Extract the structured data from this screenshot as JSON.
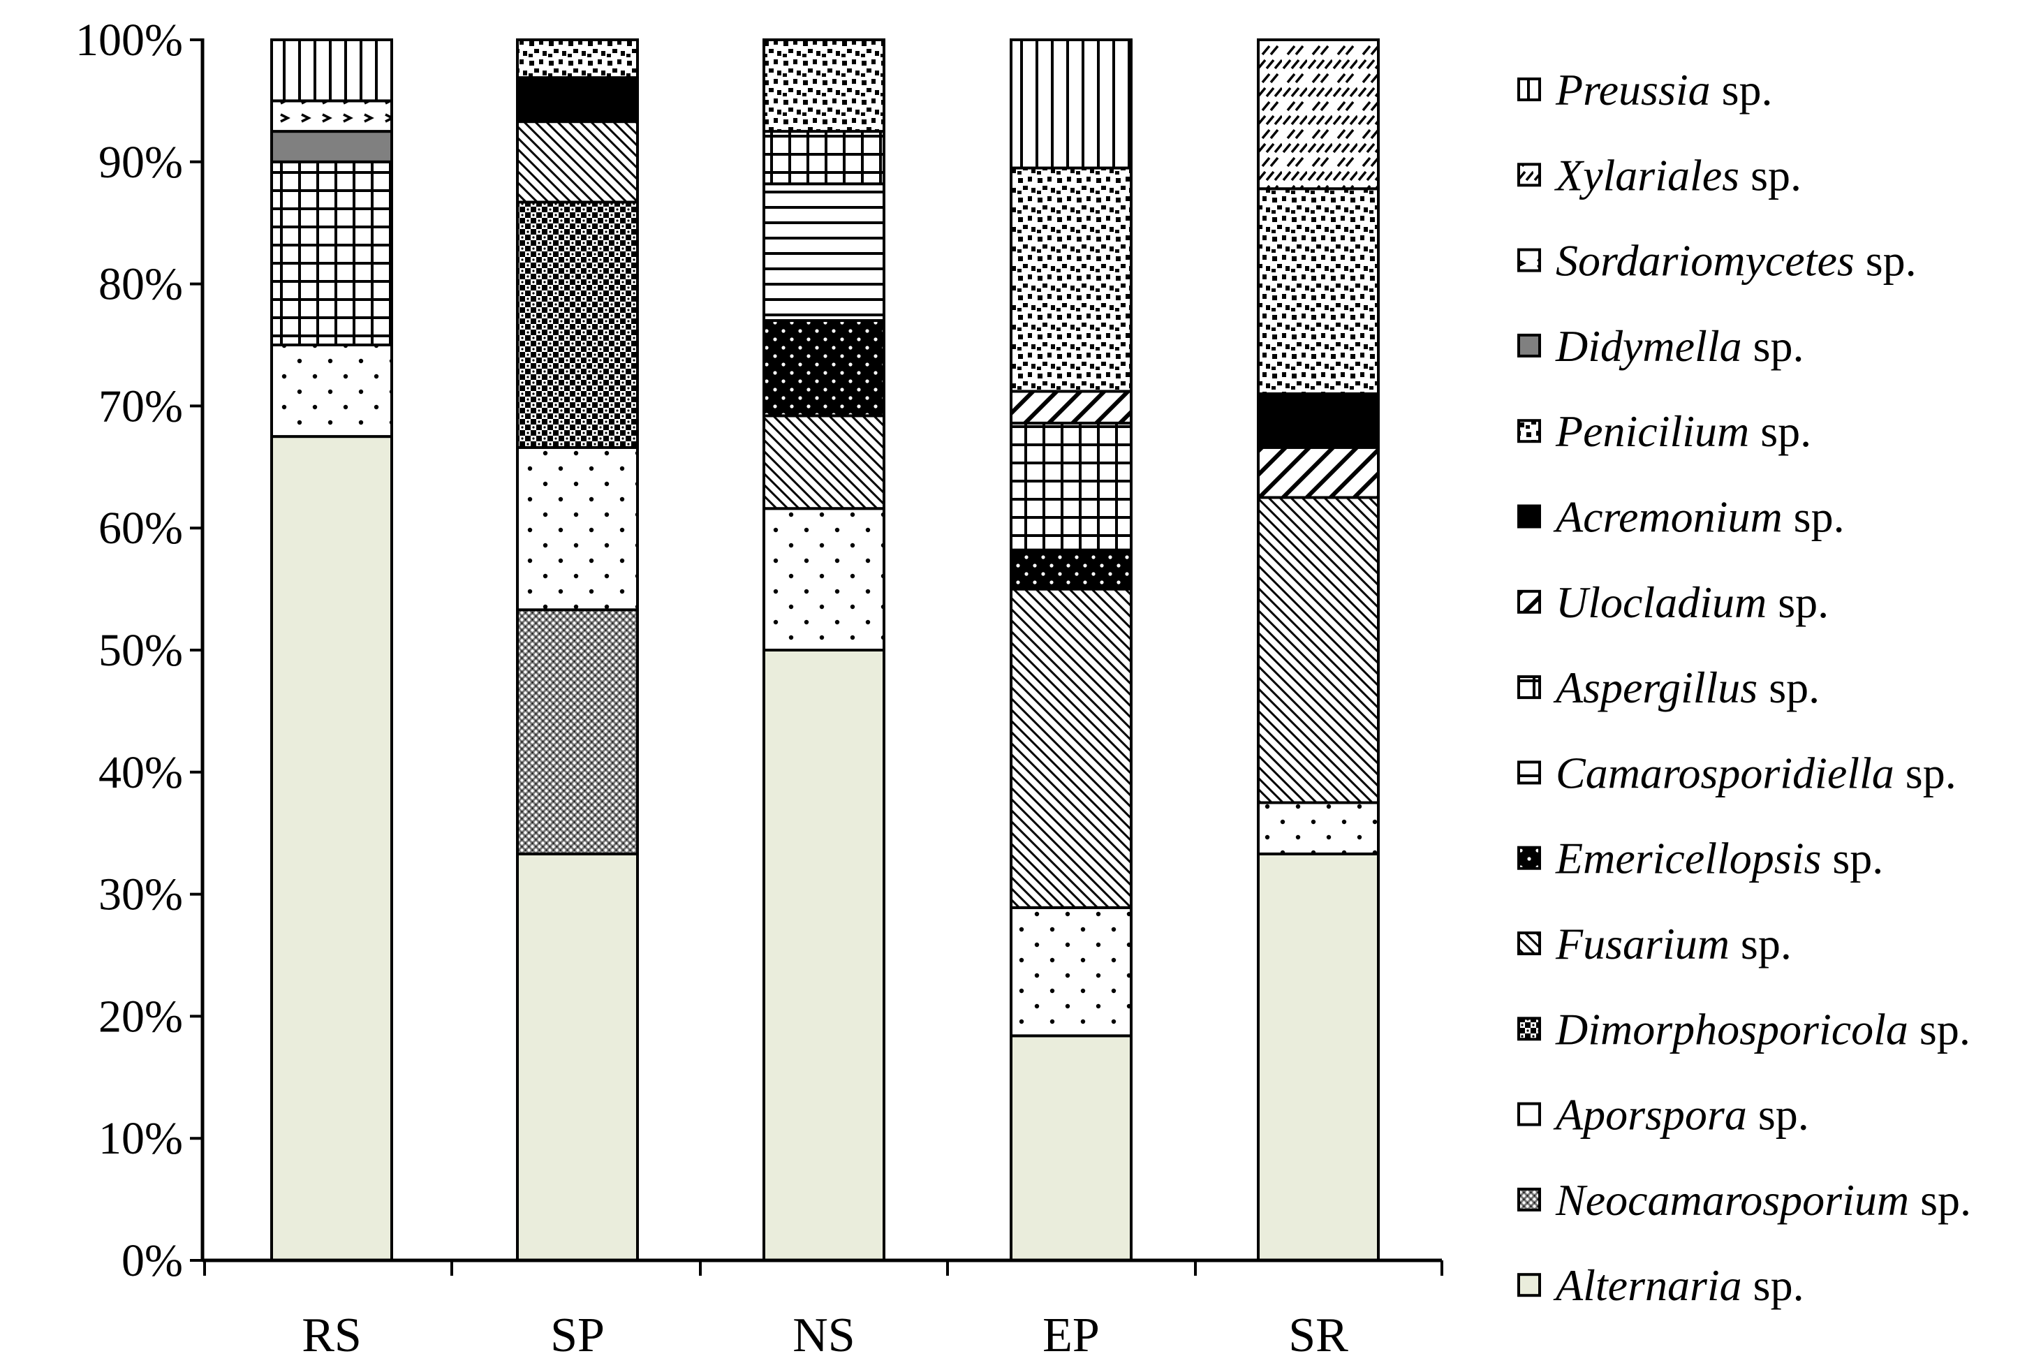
{
  "chart_data": {
    "type": "bar",
    "stacked": true,
    "normalized": true,
    "title": "",
    "xlabel": "",
    "ylabel": "",
    "ylim": [
      0,
      100
    ],
    "yticks": [
      "0%",
      "10%",
      "20%",
      "30%",
      "40%",
      "50%",
      "60%",
      "70%",
      "80%",
      "90%",
      "100%"
    ],
    "categories": [
      "RS",
      "SP",
      "NS",
      "EP",
      "SR"
    ],
    "legend_position": "right",
    "series": [
      {
        "genus": "Alternaria",
        "suffix": "sp.",
        "pattern": "solid-pale",
        "values": [
          67.5,
          33.3,
          50.0,
          18.4,
          33.3
        ]
      },
      {
        "genus": "Neocamarosporium",
        "suffix": "sp.",
        "pattern": "dense-dots",
        "values": [
          0,
          20.0,
          0,
          0,
          0
        ]
      },
      {
        "genus": "Aporspora",
        "suffix": "sp.",
        "pattern": "sparse-dots",
        "values": [
          7.5,
          13.3,
          11.6,
          10.5,
          4.2
        ]
      },
      {
        "genus": "Dimorphosporicola",
        "suffix": "sp.",
        "pattern": "checker",
        "values": [
          0,
          20.1,
          0,
          0,
          0
        ]
      },
      {
        "genus": "Fusarium",
        "suffix": "sp.",
        "pattern": "diagonal",
        "values": [
          0,
          6.6,
          7.6,
          26.1,
          25.0
        ]
      },
      {
        "genus": "Emericellopsis",
        "suffix": "sp.",
        "pattern": "black-dots",
        "values": [
          0,
          0,
          7.8,
          3.2,
          0
        ]
      },
      {
        "genus": "Camarosporidiella",
        "suffix": "sp.",
        "pattern": "horizontal-lines",
        "values": [
          0,
          0,
          11.2,
          0,
          0
        ]
      },
      {
        "genus": "Aspergillus",
        "suffix": "sp.",
        "pattern": "grid",
        "values": [
          15.0,
          0,
          4.3,
          10.4,
          0
        ]
      },
      {
        "genus": "Ulocladium",
        "suffix": "sp.",
        "pattern": "wide-diagonal",
        "values": [
          0,
          0,
          0,
          2.6,
          4.1
        ]
      },
      {
        "genus": "Acremonium",
        "suffix": "sp.",
        "pattern": "solid-black",
        "values": [
          0,
          3.6,
          0,
          0,
          4.4
        ]
      },
      {
        "genus": "Penicilium",
        "suffix": "sp.",
        "pattern": "confetti",
        "values": [
          0,
          3.1,
          7.5,
          18.3,
          16.8
        ]
      },
      {
        "genus": "Didymella",
        "suffix": "sp.",
        "pattern": "solid-gray",
        "values": [
          2.5,
          0,
          0,
          0,
          0
        ]
      },
      {
        "genus": "Sordariomycetes",
        "suffix": "sp.",
        "pattern": "chevrons",
        "values": [
          2.5,
          0,
          0,
          0,
          0
        ]
      },
      {
        "genus": "Xylariales",
        "suffix": "sp.",
        "pattern": "dashed-diagonal",
        "values": [
          0,
          0,
          0,
          0,
          12.2
        ]
      },
      {
        "genus": "Preussia",
        "suffix": "sp.",
        "pattern": "vertical-lines",
        "values": [
          5.0,
          0,
          0,
          10.5,
          0
        ]
      }
    ]
  },
  "colors": {
    "alternaria": "#eaeddc",
    "gray": "#808080",
    "black": "#000000",
    "white": "#ffffff"
  }
}
